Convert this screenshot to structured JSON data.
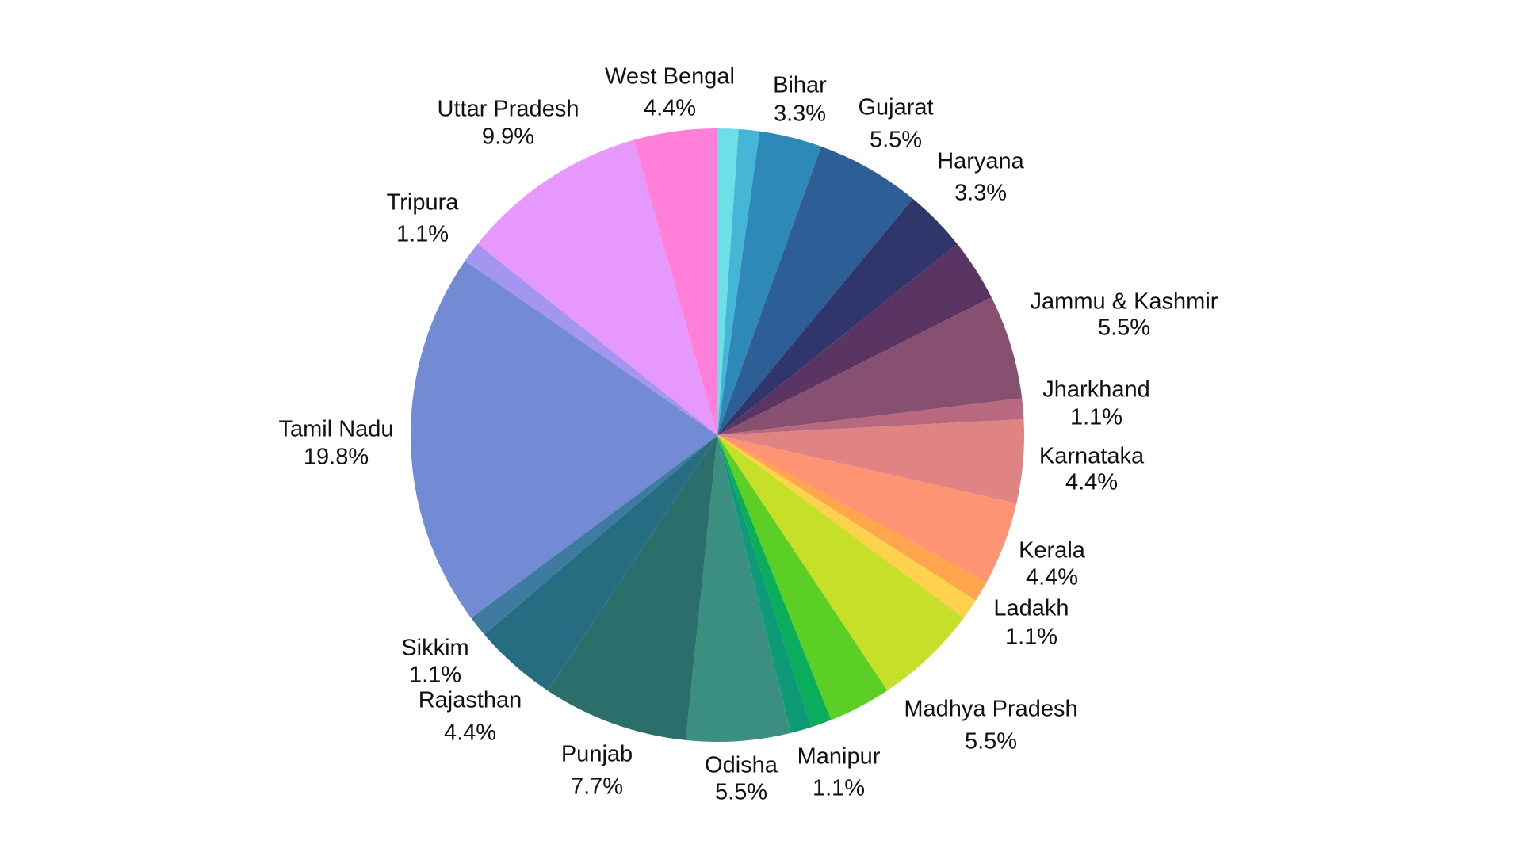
{
  "chart_data": {
    "type": "pie",
    "categories": [
      null,
      null,
      "Bihar",
      "Gujarat",
      "Haryana",
      null,
      "Jammu & Kashmir",
      "Jharkhand",
      "Karnataka",
      "Kerala",
      null,
      "Ladakh",
      "Madhya Pradesh",
      null,
      "Manipur",
      null,
      "Odisha",
      "Punjab",
      "Rajasthan",
      "Sikkim",
      "Tamil Nadu",
      "Tripura",
      "Uttar Pradesh",
      "West Bengal"
    ],
    "values": [
      1.1,
      1.1,
      3.3,
      5.5,
      3.3,
      3.3,
      5.5,
      1.1,
      4.4,
      4.4,
      1.1,
      1.1,
      5.5,
      3.3,
      1.1,
      1.1,
      5.5,
      7.7,
      4.4,
      1.1,
      19.8,
      1.1,
      9.9,
      4.4
    ],
    "value_labels": [
      null,
      null,
      "3.3%",
      "5.5%",
      "3.3%",
      null,
      "5.5%",
      "1.1%",
      "4.4%",
      "4.4%",
      null,
      "1.1%",
      "5.5%",
      null,
      "1.1%",
      null,
      "5.5%",
      "7.7%",
      "4.4%",
      "1.1%",
      "19.8%",
      "1.1%",
      "9.9%",
      "4.4%"
    ],
    "colors": [
      "#6ce0e6",
      "#45b6d6",
      "#2e88b8",
      "#2e5e96",
      "#30356b",
      "#5a3564",
      "#874f70",
      "#b8697f",
      "#e08383",
      "#ff9474",
      "#ffa64d",
      "#ffd24d",
      "#c6df29",
      "#5bcf26",
      "#0aad5e",
      "#0f9a77",
      "#3a8f80",
      "#2c6e6b",
      "#266d82",
      "#3f7ba0",
      "#728bd4",
      "#a395f0",
      "#e798fd",
      "#ff7fd9"
    ]
  }
}
